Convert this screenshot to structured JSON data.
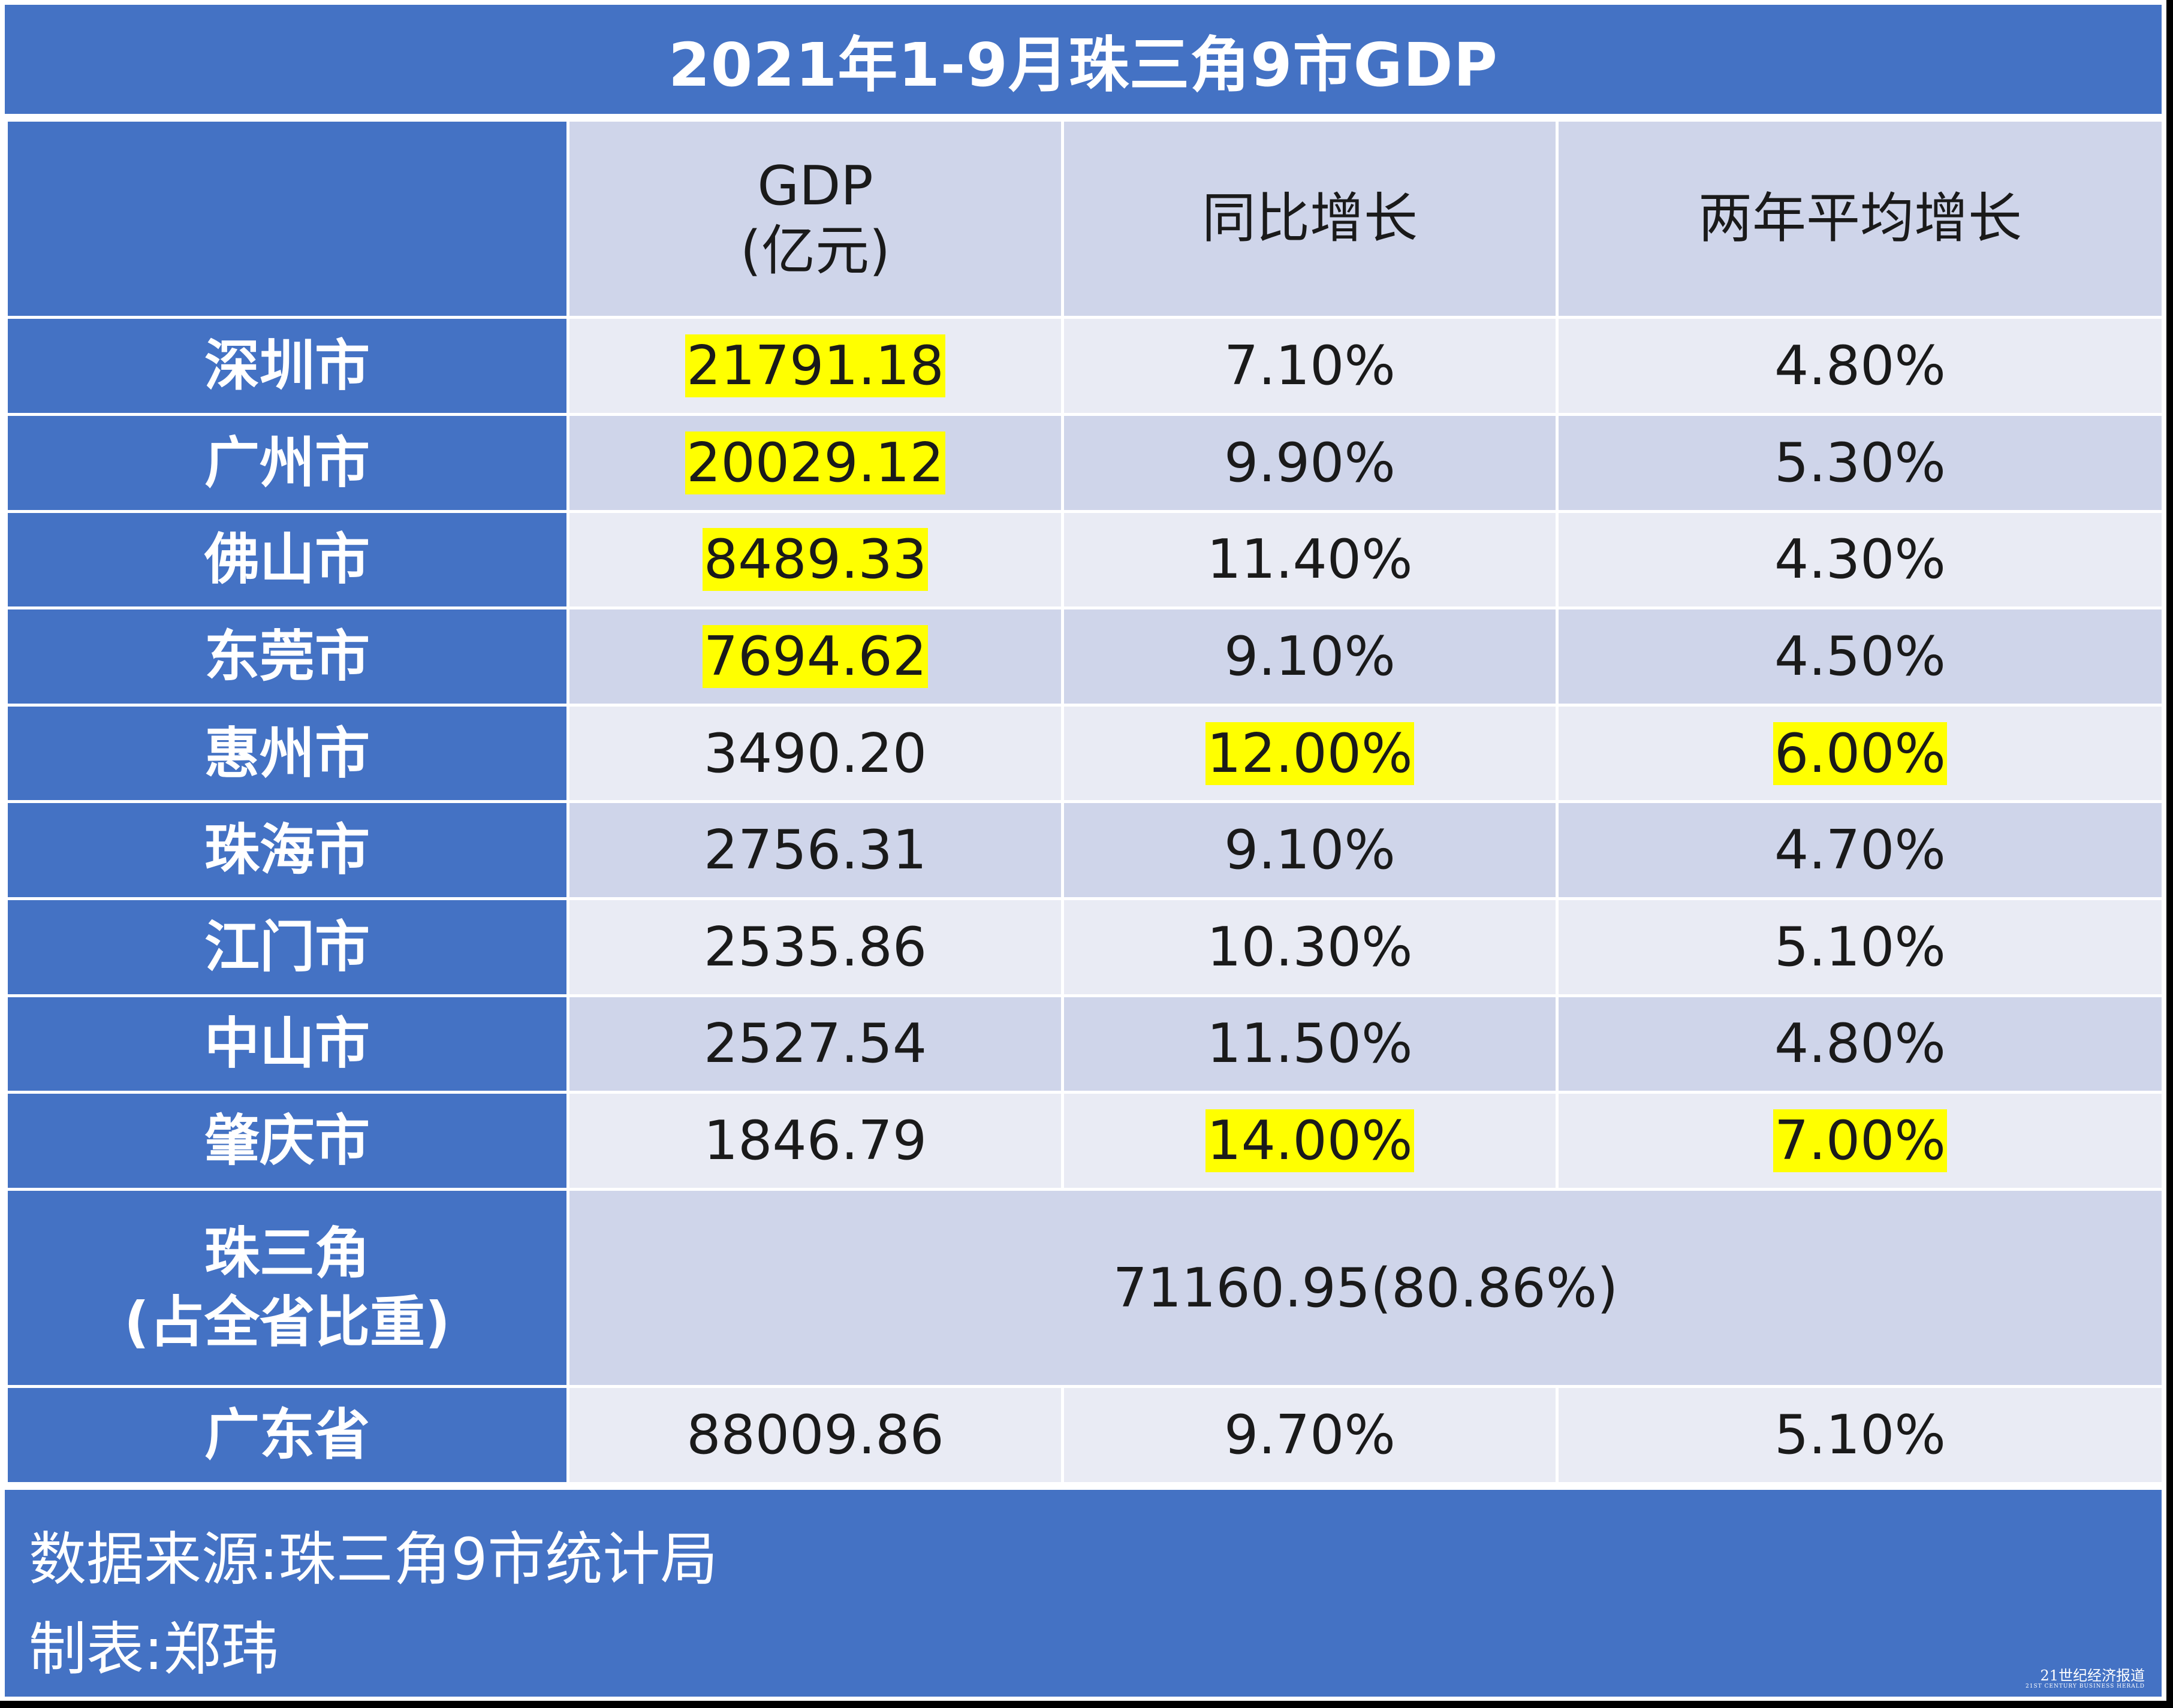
{
  "title": "2021年1-9月珠三角9市GDP",
  "headers": {
    "gdp_line1": "GDP",
    "gdp_line2": "(亿元)",
    "yoy": "同比增长",
    "two_year": "两年平均增长"
  },
  "rows": [
    {
      "city": "深圳市",
      "gdp": "21791.18",
      "yoy": "7.10%",
      "two_year": "4.80%"
    },
    {
      "city": "广州市",
      "gdp": "20029.12",
      "yoy": "9.90%",
      "two_year": "5.30%"
    },
    {
      "city": "佛山市",
      "gdp": "8489.33",
      "yoy": "11.40%",
      "two_year": "4.30%"
    },
    {
      "city": "东莞市",
      "gdp": "7694.62",
      "yoy": "9.10%",
      "two_year": "4.50%"
    },
    {
      "city": "惠州市",
      "gdp": "3490.20",
      "yoy": "12.00%",
      "two_year": "6.00%"
    },
    {
      "city": "珠海市",
      "gdp": "2756.31",
      "yoy": "9.10%",
      "two_year": "4.70%"
    },
    {
      "city": "江门市",
      "gdp": "2535.86",
      "yoy": "10.30%",
      "two_year": "5.10%"
    },
    {
      "city": "中山市",
      "gdp": "2527.54",
      "yoy": "11.50%",
      "two_year": "4.80%"
    },
    {
      "city": "肇庆市",
      "gdp": "1846.79",
      "yoy": "14.00%",
      "two_year": "7.00%"
    }
  ],
  "region": {
    "label_line1": "珠三角",
    "label_line2": "(占全省比重)",
    "value": "71160.95(80.86%)"
  },
  "province": {
    "label": "广东省",
    "gdp": "88009.86",
    "yoy": "9.70%",
    "two_year": "5.10%"
  },
  "footer": {
    "source": "数据来源:珠三角9市统计局",
    "maker": "制表:郑玮"
  },
  "logo": {
    "name": "21世纪经济报道",
    "sub": "21ST CENTURY BUSINESS HERALD"
  },
  "colors": {
    "header_blue": "#4472c4",
    "row_light": "#e9ebf4",
    "row_dark": "#cfd5ea",
    "highlight": "#ffff00"
  }
}
